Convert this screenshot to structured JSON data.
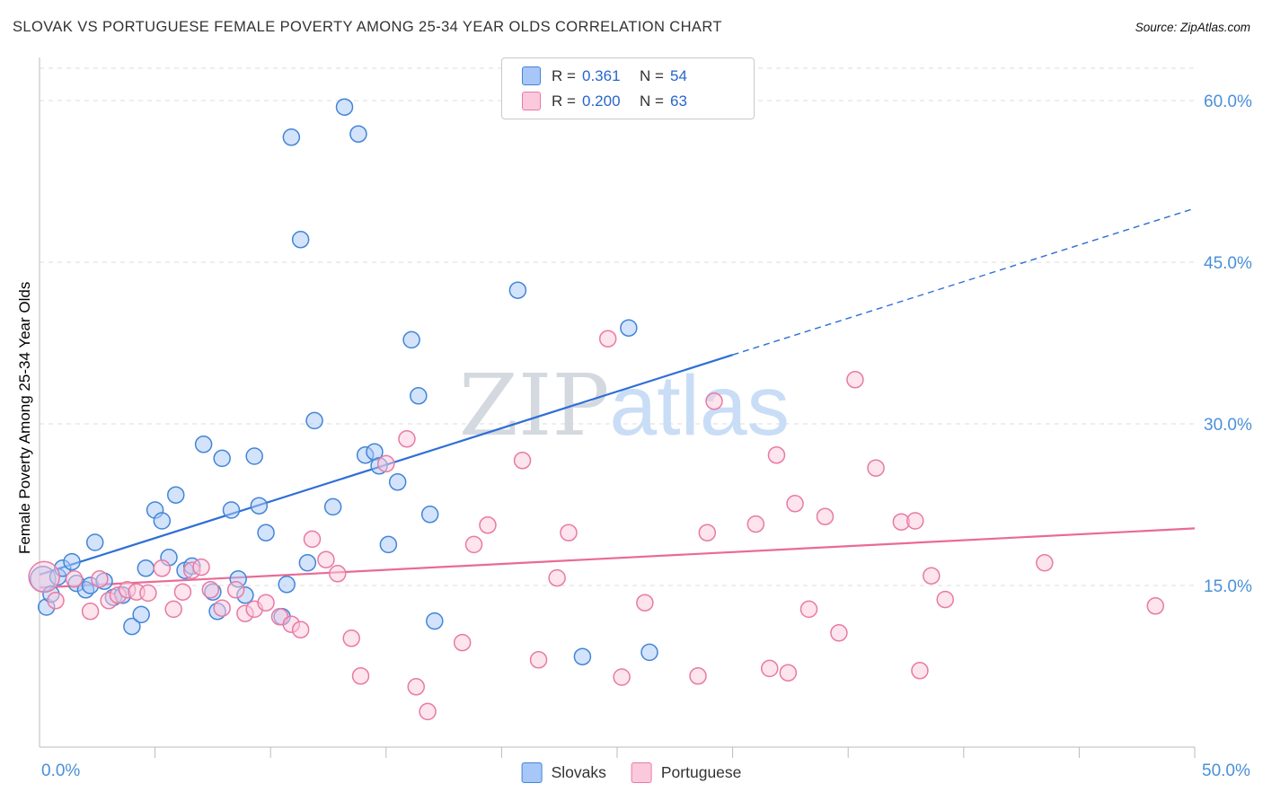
{
  "header": {
    "title": "SLOVAK VS PORTUGUESE FEMALE POVERTY AMONG 25-34 YEAR OLDS CORRELATION CHART",
    "source": "Source: ZipAtlas.com"
  },
  "legend_box": {
    "rows": [
      {
        "r_label": "R =",
        "r_value": "0.361",
        "n_label": "N =",
        "n_value": "54"
      },
      {
        "r_label": "R =",
        "r_value": "0.200",
        "n_label": "N =",
        "n_value": "63"
      }
    ]
  },
  "bottom_legend": {
    "items": [
      {
        "label": "Slovaks"
      },
      {
        "label": "Portuguese"
      }
    ]
  },
  "chart_data": {
    "type": "scatter",
    "title": "SLOVAK VS PORTUGUESE FEMALE POVERTY AMONG 25-34 YEAR OLDS CORRELATION CHART",
    "xlabel": "",
    "ylabel": "Female Poverty Among 25-34 Year Olds",
    "xlim": [
      0,
      50
    ],
    "ylim": [
      0,
      63
    ],
    "x_corner_labels": [
      "0.0%",
      "50.0%"
    ],
    "x_ticks": [
      5,
      10,
      15,
      20,
      25,
      30,
      35,
      40,
      45,
      50
    ],
    "y_ticks": [
      15,
      30,
      45,
      60
    ],
    "y_tick_labels": [
      "15.0%",
      "30.0%",
      "45.0%",
      "60.0%"
    ],
    "grid": true,
    "legend_position": "top-center",
    "axis_color": "#4a90d9",
    "grid_color": "#dddddd",
    "watermark_parts": [
      "ZIP",
      "atlas"
    ],
    "watermark_colors": [
      "#d4d9e0",
      "#c9ddf6"
    ],
    "series": [
      {
        "name": "Slovaks",
        "R": "0.361",
        "N": "54",
        "fill": "#a7c7f9",
        "stroke": "#4285d6",
        "points": [
          [
            0.15,
            15.6,
            14
          ],
          [
            0.3,
            13.0
          ],
          [
            0.5,
            14.2
          ],
          [
            0.8,
            15.8
          ],
          [
            1.0,
            16.6
          ],
          [
            1.4,
            17.2
          ],
          [
            1.6,
            15.2
          ],
          [
            2.0,
            14.6
          ],
          [
            2.2,
            15.0
          ],
          [
            2.4,
            19.0
          ],
          [
            2.8,
            15.4
          ],
          [
            3.2,
            13.9
          ],
          [
            3.6,
            14.1
          ],
          [
            4.0,
            11.2
          ],
          [
            4.4,
            12.3
          ],
          [
            4.6,
            16.6
          ],
          [
            5.0,
            22.0
          ],
          [
            5.3,
            21.0
          ],
          [
            5.6,
            17.6
          ],
          [
            5.9,
            23.4
          ],
          [
            6.3,
            16.4
          ],
          [
            6.6,
            16.8
          ],
          [
            7.1,
            28.1
          ],
          [
            7.5,
            14.4
          ],
          [
            7.7,
            12.6
          ],
          [
            7.9,
            26.8
          ],
          [
            8.3,
            22.0
          ],
          [
            8.6,
            15.6
          ],
          [
            8.9,
            14.1
          ],
          [
            9.3,
            27.0
          ],
          [
            9.5,
            22.4
          ],
          [
            9.8,
            19.9
          ],
          [
            10.5,
            12.1
          ],
          [
            10.7,
            15.1
          ],
          [
            10.9,
            56.6
          ],
          [
            11.3,
            47.1
          ],
          [
            11.6,
            17.1
          ],
          [
            11.9,
            30.3
          ],
          [
            12.7,
            22.3
          ],
          [
            13.2,
            59.4
          ],
          [
            13.8,
            56.9
          ],
          [
            14.1,
            27.1
          ],
          [
            14.5,
            27.4
          ],
          [
            14.7,
            26.1
          ],
          [
            15.1,
            18.8
          ],
          [
            15.5,
            24.6
          ],
          [
            16.1,
            37.8
          ],
          [
            16.4,
            32.6
          ],
          [
            16.9,
            21.6
          ],
          [
            17.1,
            11.7
          ],
          [
            20.7,
            42.4
          ],
          [
            23.5,
            8.4
          ],
          [
            25.5,
            38.9
          ],
          [
            26.4,
            8.8
          ]
        ]
      },
      {
        "name": "Portuguese",
        "R": "0.200",
        "N": "63",
        "fill": "#fbc9dc",
        "stroke": "#e87aa4",
        "points": [
          [
            0.2,
            15.8,
            17
          ],
          [
            0.7,
            13.6
          ],
          [
            1.5,
            15.6
          ],
          [
            2.2,
            12.6
          ],
          [
            2.6,
            15.6
          ],
          [
            3.0,
            13.6
          ],
          [
            3.4,
            14.1
          ],
          [
            3.8,
            14.6
          ],
          [
            4.2,
            14.4
          ],
          [
            4.7,
            14.3
          ],
          [
            5.3,
            16.6
          ],
          [
            5.8,
            12.8
          ],
          [
            6.2,
            14.4
          ],
          [
            6.6,
            16.4
          ],
          [
            7.0,
            16.7
          ],
          [
            7.4,
            14.6
          ],
          [
            7.9,
            12.9
          ],
          [
            8.5,
            14.6
          ],
          [
            8.9,
            12.4
          ],
          [
            9.3,
            12.8
          ],
          [
            9.8,
            13.4
          ],
          [
            10.4,
            12.1
          ],
          [
            10.9,
            11.4
          ],
          [
            11.3,
            10.9
          ],
          [
            11.8,
            19.3
          ],
          [
            12.4,
            17.4
          ],
          [
            12.9,
            16.1
          ],
          [
            13.5,
            10.1
          ],
          [
            13.9,
            6.6
          ],
          [
            15.0,
            26.3
          ],
          [
            15.9,
            28.6
          ],
          [
            16.3,
            5.6
          ],
          [
            16.8,
            3.3
          ],
          [
            18.3,
            9.7
          ],
          [
            18.8,
            18.8
          ],
          [
            19.4,
            20.6
          ],
          [
            20.9,
            26.6
          ],
          [
            21.6,
            8.1
          ],
          [
            22.4,
            15.7
          ],
          [
            22.9,
            19.9
          ],
          [
            24.6,
            37.9
          ],
          [
            25.2,
            6.5
          ],
          [
            26.2,
            13.4
          ],
          [
            28.5,
            6.6
          ],
          [
            28.9,
            19.9
          ],
          [
            29.2,
            32.1
          ],
          [
            31.0,
            20.7
          ],
          [
            31.6,
            7.3
          ],
          [
            31.9,
            27.1
          ],
          [
            32.4,
            6.9
          ],
          [
            32.7,
            22.6
          ],
          [
            33.3,
            12.8
          ],
          [
            34.0,
            21.4
          ],
          [
            34.6,
            10.6
          ],
          [
            35.3,
            34.1
          ],
          [
            36.2,
            25.9
          ],
          [
            37.3,
            20.9
          ],
          [
            37.9,
            21.0
          ],
          [
            38.1,
            7.1
          ],
          [
            38.6,
            15.9
          ],
          [
            39.2,
            13.7
          ],
          [
            43.5,
            17.1
          ],
          [
            48.3,
            13.1
          ]
        ]
      }
    ],
    "trendlines": [
      {
        "series": "Slovaks",
        "color": "#2f6fd6",
        "x0": 0,
        "y0": 16.0,
        "x1": 50,
        "y1": 50.0,
        "solid_until": 30
      },
      {
        "series": "Portuguese",
        "color": "#ea6a96",
        "x0": 0,
        "y0": 14.8,
        "x1": 50,
        "y1": 20.3
      }
    ]
  }
}
